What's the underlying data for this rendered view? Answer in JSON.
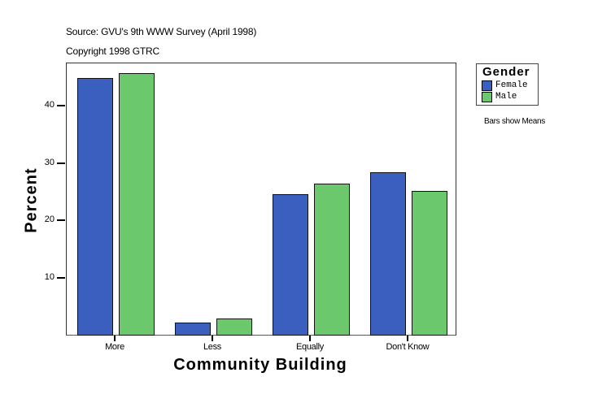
{
  "header": {
    "source": "Source: GVU's 9th WWW Survey (April 1998)",
    "copyright": "Copyright 1998 GTRC"
  },
  "legend": {
    "title": "Gender",
    "items": [
      {
        "label": "Female",
        "color": "#3a5fbf"
      },
      {
        "label": "Male",
        "color": "#6cc86c"
      }
    ]
  },
  "note": "Bars show Means",
  "axes": {
    "x_title": "Community Building",
    "y_title": "Percent",
    "y_ticks": [
      "10",
      "20",
      "30",
      "40"
    ],
    "x_ticks": [
      "More",
      "Less",
      "Equally",
      "Don't Know"
    ]
  },
  "chart_data": {
    "type": "bar",
    "title": "",
    "subtitle": "Source: GVU's 9th WWW Survey (April 1998) / Copyright 1998 GTRC",
    "xlabel": "Community Building",
    "ylabel": "Percent",
    "categories": [
      "More",
      "Less",
      "Equally",
      "Don't Know"
    ],
    "series": [
      {
        "name": "Female",
        "color": "#3a5fbf",
        "values": [
          44.8,
          2.3,
          24.6,
          28.4
        ]
      },
      {
        "name": "Male",
        "color": "#6cc86c",
        "values": [
          45.7,
          3.0,
          26.4,
          25.2
        ]
      }
    ],
    "ylim": [
      0,
      47.5
    ],
    "yticks": [
      10,
      20,
      30,
      40
    ],
    "grid": false,
    "legend_position": "right-top",
    "annotations": [
      "Bars show Means"
    ]
  }
}
